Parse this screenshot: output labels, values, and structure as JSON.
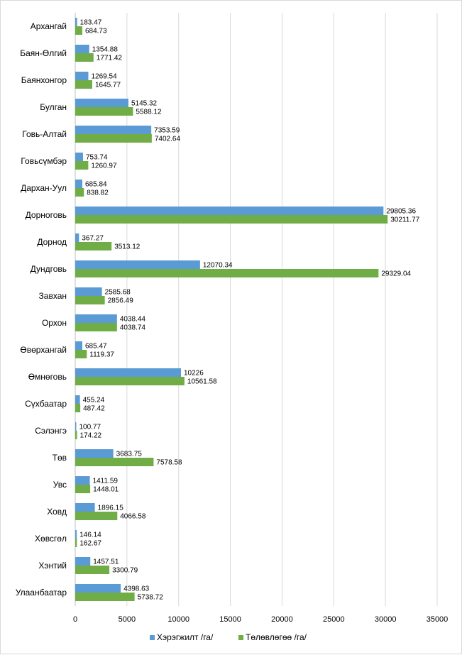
{
  "chart_data": {
    "type": "bar",
    "orientation": "horizontal",
    "title": "",
    "xlabel": "",
    "ylabel": "",
    "xlim": [
      0,
      35000
    ],
    "xticks": [
      0,
      5000,
      10000,
      15000,
      20000,
      25000,
      30000,
      35000
    ],
    "grid": true,
    "legend_position": "bottom",
    "categories": [
      "Архангай",
      "Баян-Өлгий",
      "Баянхонгор",
      "Булган",
      "Говь-Алтай",
      "Говьсүмбэр",
      "Дархан-Уул",
      "Дорноговь",
      "Дорнод",
      "Дундговь",
      "Завхан",
      "Орхон",
      "Өвөрхангай",
      "Өмнөговь",
      "Сүхбаатар",
      "Сэлэнгэ",
      "Төв",
      "Увс",
      "Ховд",
      "Хөвсгөл",
      "Хэнтий",
      "Улаанбаатар"
    ],
    "series": [
      {
        "name": "Хэрэгжилт  /га/",
        "color": "#5b9bd5",
        "values": [
          183.47,
          1354.88,
          1269.54,
          5145.32,
          7353.59,
          753.74,
          685.84,
          29805.36,
          367.27,
          12070.34,
          2585.68,
          4038.44,
          685.47,
          10226,
          455.24,
          100.77,
          3683.75,
          1411.59,
          1896.15,
          146.14,
          1457.51,
          4398.63
        ],
        "labels": [
          "183.47",
          "1354.88",
          "1269.54",
          "5145.32",
          "7353.59",
          "753.74",
          "685.84",
          "29805.36",
          "367.27",
          "12070.34",
          "2585.68",
          "4038.44",
          "685.47",
          "10226",
          "455.24",
          "100.77",
          "3683.75",
          "1411.59",
          "1896.15",
          "146.14",
          "1457.51",
          "4398.63"
        ]
      },
      {
        "name": "Төлөвлөгөө /га/",
        "color": "#70ad47",
        "values": [
          684.73,
          1771.42,
          1645.77,
          5588.12,
          7402.64,
          1260.97,
          838.82,
          30211.77,
          3513.12,
          29329.04,
          2856.49,
          4038.74,
          1119.37,
          10561.58,
          487.42,
          174.22,
          7578.58,
          1448.01,
          4066.58,
          162.67,
          3300.79,
          5738.72
        ],
        "labels": [
          "684.73",
          "1771.42",
          "1645.77",
          "5588.12",
          "7402.64",
          "1260.97",
          "838.82",
          "30211.77",
          "3513.12",
          "29329.04",
          "2856.49",
          "4038.74",
          "1119.37",
          "10561.58",
          "487.42",
          "174.22",
          "7578.58",
          "1448.01",
          "4066.58",
          "162.67",
          "3300.79",
          "5738.72"
        ]
      }
    ],
    "legend": [
      "Хэрэгжилт  /га/",
      "Төлөвлөгөө /га/"
    ]
  }
}
